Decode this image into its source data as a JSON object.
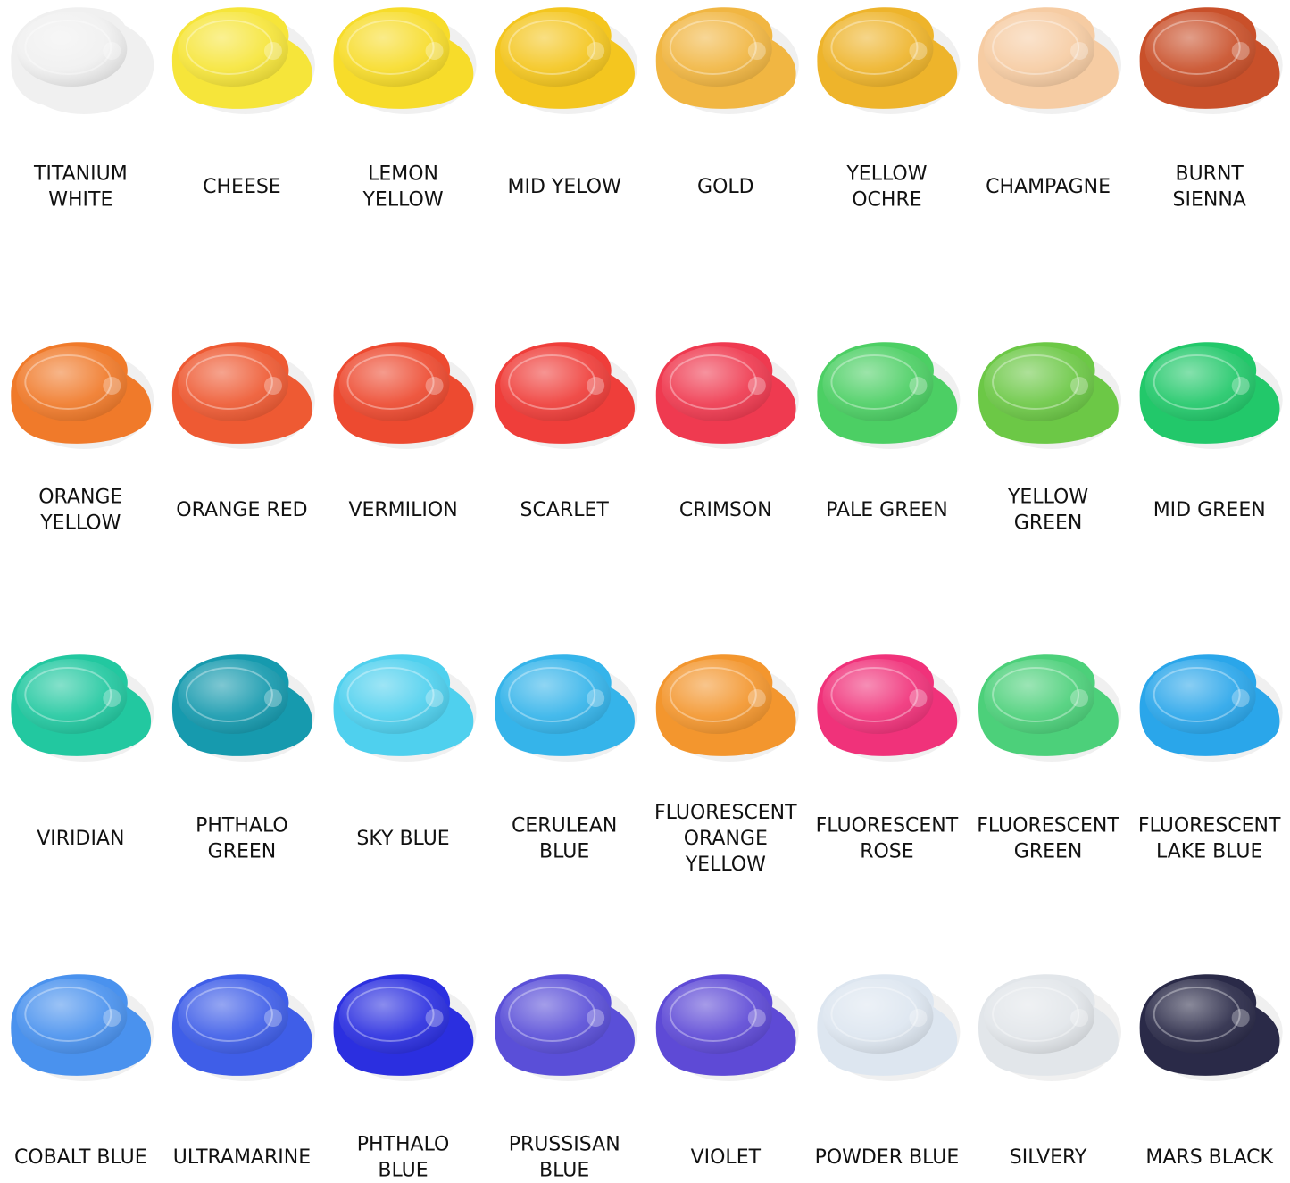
{
  "swatches": [
    {
      "label": [
        "TITANIUM",
        "WHITE"
      ],
      "color": "#f0f0f0"
    },
    {
      "label": [
        "CHEESE"
      ],
      "color": "#f6e53a"
    },
    {
      "label": [
        "LEMON",
        "YELLOW"
      ],
      "color": "#f7dc2a"
    },
    {
      "label": [
        "MID YELOW"
      ],
      "color": "#f4c61f"
    },
    {
      "label": [
        "GOLD"
      ],
      "color": "#f1b642"
    },
    {
      "label": [
        "YELLOW",
        "OCHRE"
      ],
      "color": "#eeb42b"
    },
    {
      "label": [
        "CHAMPAGNE"
      ],
      "color": "#f6cca3"
    },
    {
      "label": [
        "BURNT",
        "SIENNA"
      ],
      "color": "#c9502a"
    },
    {
      "label": [
        "ORANGE",
        "YELLOW"
      ],
      "color": "#f07a2a"
    },
    {
      "label": [
        "ORANGE RED"
      ],
      "color": "#ee5a33"
    },
    {
      "label": [
        "VERMILION"
      ],
      "color": "#ed4a30"
    },
    {
      "label": [
        "SCARLET"
      ],
      "color": "#ef3e3a"
    },
    {
      "label": [
        "CRIMSON"
      ],
      "color": "#ef3a50"
    },
    {
      "label": [
        "PALE GREEN"
      ],
      "color": "#4ccf64"
    },
    {
      "label": [
        "YELLOW",
        "GREEN"
      ],
      "color": "#6cc846"
    },
    {
      "label": [
        "MID GREEN"
      ],
      "color": "#22c86a"
    },
    {
      "label": [
        "VIRIDIAN"
      ],
      "color": "#22c8a0"
    },
    {
      "label": [
        "PHTHALO",
        "GREEN"
      ],
      "color": "#169aae"
    },
    {
      "label": [
        "SKY BLUE"
      ],
      "color": "#4fd0ee"
    },
    {
      "label": [
        "CERULEAN",
        "BLUE"
      ],
      "color": "#35b4ea"
    },
    {
      "label": [
        "FLUORESCENT",
        "ORANGE",
        "YELLOW"
      ],
      "color": "#f3962e"
    },
    {
      "label": [
        "FLUORESCENT",
        "ROSE"
      ],
      "color": "#f0327a"
    },
    {
      "label": [
        "FLUORESCENT",
        "GREEN"
      ],
      "color": "#4cd07a"
    },
    {
      "label": [
        "FLUORESCENT",
        "LAKE BLUE"
      ],
      "color": "#2aa6ea"
    },
    {
      "label": [
        "COBALT BLUE"
      ],
      "color": "#4a92ee"
    },
    {
      "label": [
        "ULTRAMARINE"
      ],
      "color": "#3f5ee8"
    },
    {
      "label": [
        "PHTHALO",
        "BLUE"
      ],
      "color": "#2b2fe0"
    },
    {
      "label": [
        "PRUSSISAN",
        "BLUE"
      ],
      "color": "#5a4fd8"
    },
    {
      "label": [
        "VIOLET"
      ],
      "color": "#5e4ad6"
    },
    {
      "label": [
        "POWDER BLUE"
      ],
      "color": "#dde6f0"
    },
    {
      "label": [
        "SILVERY"
      ],
      "color": "#e2e6ea"
    },
    {
      "label": [
        "MARS BLACK"
      ],
      "color": "#2a2a48"
    }
  ]
}
